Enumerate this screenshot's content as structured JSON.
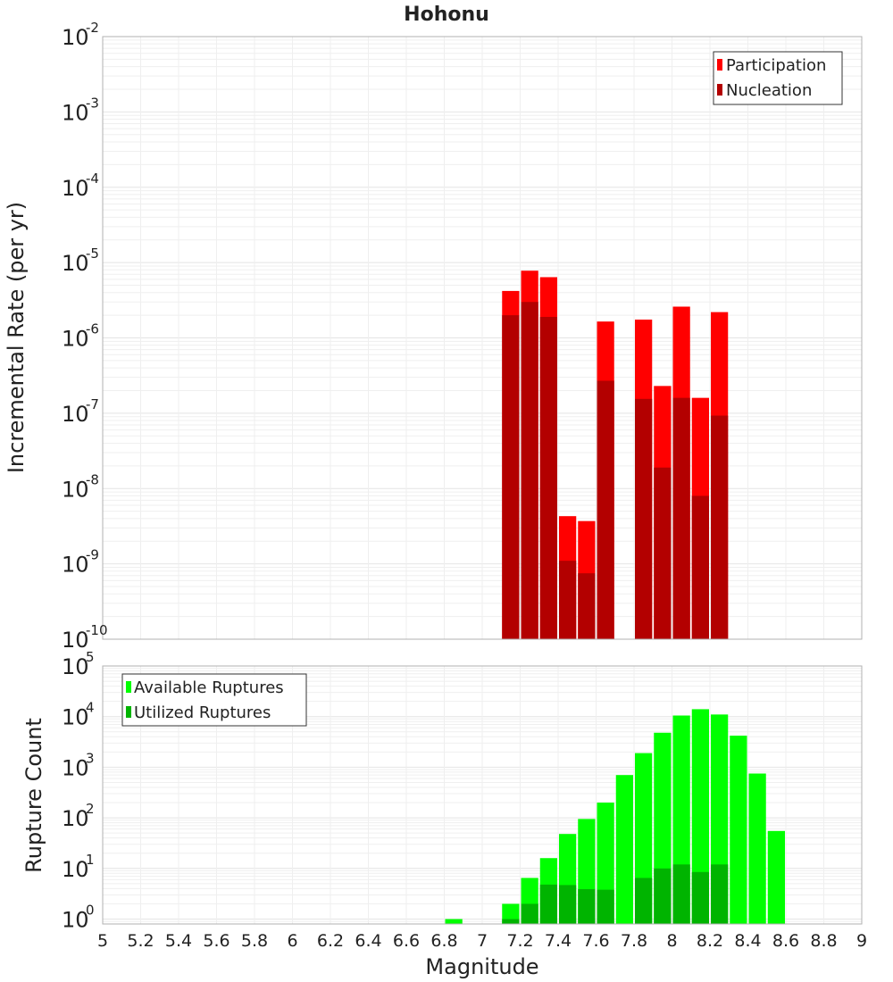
{
  "chart_data": [
    {
      "type": "bar",
      "title": "Hohonu",
      "xlabel": "",
      "ylabel": "Incremental Rate (per yr)",
      "yscale": "log",
      "ylim": [
        1e-10,
        0.01
      ],
      "xlim": [
        5,
        9
      ],
      "y_ticks": [
        {
          "base": "10",
          "exp": "-10"
        },
        {
          "base": "10",
          "exp": "-9"
        },
        {
          "base": "10",
          "exp": "-8"
        },
        {
          "base": "10",
          "exp": "-7"
        },
        {
          "base": "10",
          "exp": "-6"
        },
        {
          "base": "10",
          "exp": "-5"
        },
        {
          "base": "10",
          "exp": "-4"
        },
        {
          "base": "10",
          "exp": "-3"
        },
        {
          "base": "10",
          "exp": "-2"
        }
      ],
      "legend": {
        "position": "top-right"
      },
      "grid": true,
      "bar_width": 0.1,
      "series": [
        {
          "name": "Participation",
          "color": "#ff0000",
          "x": [
            7.15,
            7.25,
            7.35,
            7.45,
            7.55,
            7.65,
            7.85,
            7.95,
            8.05,
            8.15,
            8.25
          ],
          "values": [
            4.2e-06,
            7.8e-06,
            6.4e-06,
            4.3e-09,
            3.7e-09,
            1.65e-06,
            1.75e-06,
            2.3e-07,
            2.6e-06,
            1.6e-07,
            2.2e-06
          ]
        },
        {
          "name": "Nucleation",
          "color": "#b30000",
          "x": [
            7.15,
            7.25,
            7.35,
            7.45,
            7.55,
            7.65,
            7.85,
            7.95,
            8.05,
            8.15,
            8.25
          ],
          "values": [
            2e-06,
            3e-06,
            1.9e-06,
            1.1e-09,
            7.5e-10,
            2.7e-07,
            1.55e-07,
            1.9e-08,
            1.6e-07,
            8e-09,
            9.3e-08
          ]
        }
      ]
    },
    {
      "type": "bar",
      "title": "",
      "xlabel": "Magnitude",
      "ylabel": "Rupture Count",
      "yscale": "log",
      "ylim": [
        0.8,
        100000
      ],
      "xlim": [
        5,
        9
      ],
      "x_ticks": [
        "5",
        "5.2",
        "5.4",
        "5.6",
        "5.8",
        "6",
        "6.2",
        "6.4",
        "6.6",
        "6.8",
        "7",
        "7.2",
        "7.4",
        "7.6",
        "7.8",
        "8",
        "8.2",
        "8.4",
        "8.6",
        "8.8",
        "9"
      ],
      "y_ticks": [
        {
          "base": "10",
          "exp": "0"
        },
        {
          "base": "10",
          "exp": "1"
        },
        {
          "base": "10",
          "exp": "2"
        },
        {
          "base": "10",
          "exp": "3"
        },
        {
          "base": "10",
          "exp": "4"
        },
        {
          "base": "10",
          "exp": "5"
        }
      ],
      "legend": {
        "position": "top-left"
      },
      "grid": true,
      "bar_width": 0.1,
      "series": [
        {
          "name": "Available Ruptures",
          "color": "#00ff00",
          "x": [
            6.85,
            7.15,
            7.25,
            7.35,
            7.45,
            7.55,
            7.65,
            7.75,
            7.85,
            7.95,
            8.05,
            8.15,
            8.25,
            8.35,
            8.45,
            8.55
          ],
          "values": [
            1,
            2,
            6.5,
            16,
            48,
            95,
            200,
            700,
            1900,
            4800,
            10500,
            14000,
            11000,
            4200,
            750,
            55
          ]
        },
        {
          "name": "Utilized Ruptures",
          "color": "#00b400",
          "x": [
            7.15,
            7.25,
            7.35,
            7.45,
            7.55,
            7.65,
            7.85,
            7.95,
            8.05,
            8.15,
            8.25
          ],
          "values": [
            1,
            2,
            4.8,
            4.7,
            3.9,
            3.8,
            6.5,
            10,
            12,
            8.5,
            12
          ]
        }
      ]
    }
  ]
}
